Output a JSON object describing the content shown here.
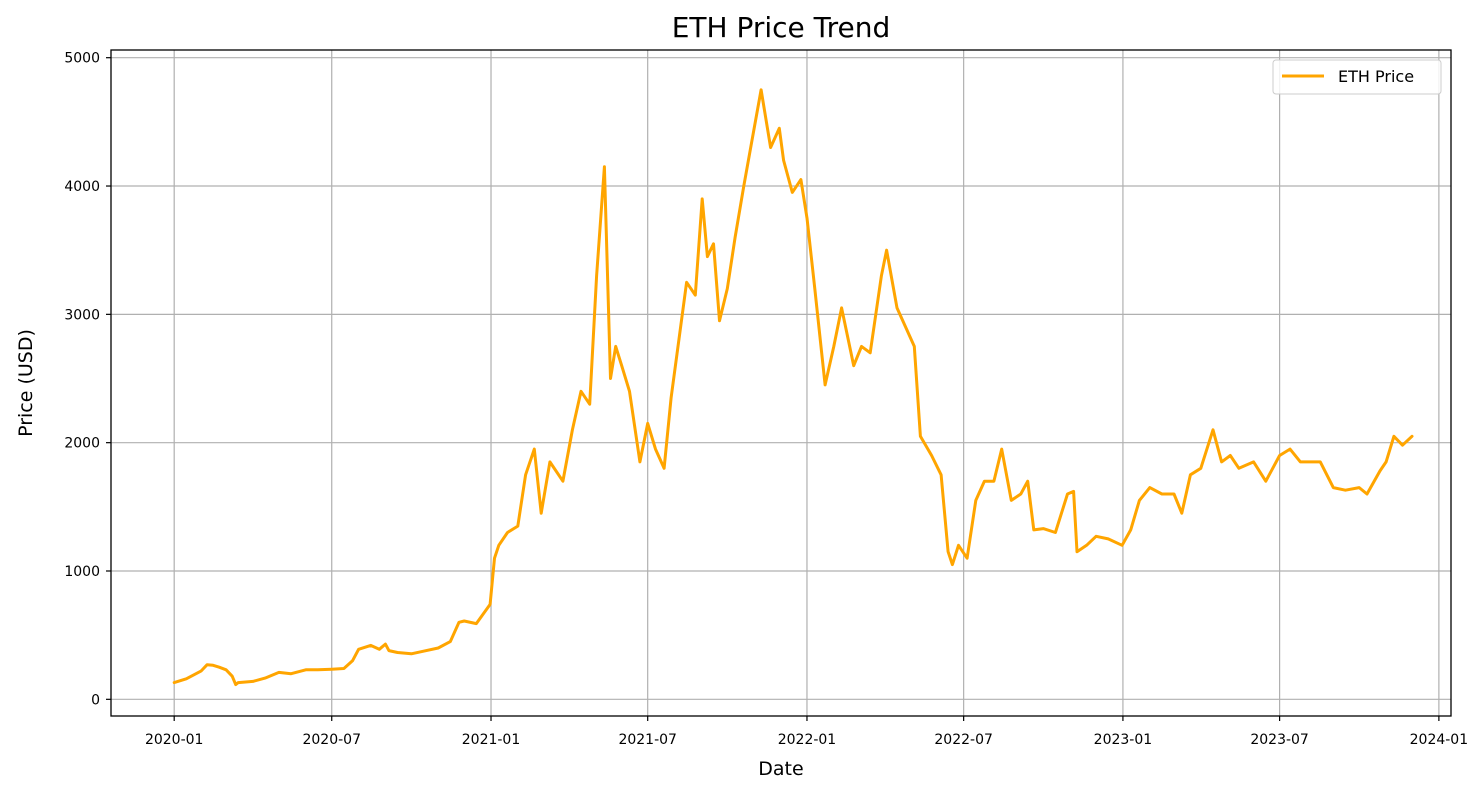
{
  "chart_data": {
    "type": "line",
    "title": "ETH Price Trend",
    "xlabel": "Date",
    "ylabel": "Price (USD)",
    "x_ticks": [
      "2020-01",
      "2020-07",
      "2021-01",
      "2021-07",
      "2022-01",
      "2022-07",
      "2023-01",
      "2023-07",
      "2024-01"
    ],
    "y_ticks": [
      0,
      1000,
      2000,
      3000,
      4000,
      5000
    ],
    "xlim": [
      "2019-10-20",
      "2024-01-15"
    ],
    "ylim": [
      -130,
      5060
    ],
    "grid": true,
    "legend_position": "upper right",
    "colors": {
      "series": "#FFA500",
      "grid": "#b0b0b0",
      "axes": "#000000"
    },
    "series": [
      {
        "name": "ETH Price",
        "x": [
          "2020-01-01",
          "2020-01-15",
          "2020-02-01",
          "2020-02-08",
          "2020-02-15",
          "2020-02-22",
          "2020-03-01",
          "2020-03-08",
          "2020-03-12",
          "2020-03-15",
          "2020-04-01",
          "2020-04-15",
          "2020-05-01",
          "2020-05-15",
          "2020-06-01",
          "2020-06-15",
          "2020-07-01",
          "2020-07-15",
          "2020-07-25",
          "2020-08-01",
          "2020-08-15",
          "2020-08-25",
          "2020-09-01",
          "2020-09-05",
          "2020-09-15",
          "2020-10-01",
          "2020-10-15",
          "2020-11-01",
          "2020-11-15",
          "2020-11-25",
          "2020-12-01",
          "2020-12-15",
          "2020-12-31",
          "2021-01-05",
          "2021-01-10",
          "2021-01-20",
          "2021-02-01",
          "2021-02-10",
          "2021-02-20",
          "2021-02-28",
          "2021-03-10",
          "2021-03-25",
          "2021-04-05",
          "2021-04-15",
          "2021-04-25",
          "2021-05-03",
          "2021-05-12",
          "2021-05-19",
          "2021-05-25",
          "2021-06-01",
          "2021-06-10",
          "2021-06-22",
          "2021-07-01",
          "2021-07-10",
          "2021-07-20",
          "2021-07-28",
          "2021-08-05",
          "2021-08-15",
          "2021-08-25",
          "2021-09-02",
          "2021-09-08",
          "2021-09-15",
          "2021-09-22",
          "2021-10-01",
          "2021-10-10",
          "2021-10-20",
          "2021-10-28",
          "2021-11-09",
          "2021-11-20",
          "2021-11-30",
          "2021-12-05",
          "2021-12-15",
          "2021-12-25",
          "2022-01-01",
          "2022-01-10",
          "2022-01-22",
          "2022-02-01",
          "2022-02-10",
          "2022-02-24",
          "2022-03-05",
          "2022-03-15",
          "2022-03-28",
          "2022-04-03",
          "2022-04-15",
          "2022-04-25",
          "2022-05-05",
          "2022-05-12",
          "2022-05-25",
          "2022-06-05",
          "2022-06-13",
          "2022-06-18",
          "2022-06-25",
          "2022-07-05",
          "2022-07-15",
          "2022-07-25",
          "2022-08-05",
          "2022-08-14",
          "2022-08-25",
          "2022-09-05",
          "2022-09-13",
          "2022-09-20",
          "2022-10-01",
          "2022-10-15",
          "2022-10-29",
          "2022-11-05",
          "2022-11-09",
          "2022-11-20",
          "2022-12-01",
          "2022-12-15",
          "2022-12-31",
          "2023-01-10",
          "2023-01-20",
          "2023-02-01",
          "2023-02-15",
          "2023-03-01",
          "2023-03-10",
          "2023-03-20",
          "2023-04-01",
          "2023-04-15",
          "2023-04-25",
          "2023-05-05",
          "2023-05-15",
          "2023-06-01",
          "2023-06-15",
          "2023-07-01",
          "2023-07-13",
          "2023-07-25",
          "2023-08-05",
          "2023-08-17",
          "2023-09-01",
          "2023-09-15",
          "2023-10-01",
          "2023-10-10",
          "2023-10-25",
          "2023-11-01",
          "2023-11-10",
          "2023-11-20",
          "2023-12-01"
        ],
        "values": [
          130,
          160,
          220,
          270,
          265,
          250,
          230,
          180,
          115,
          130,
          140,
          165,
          210,
          200,
          230,
          230,
          235,
          240,
          300,
          390,
          420,
          390,
          430,
          380,
          365,
          355,
          375,
          400,
          450,
          600,
          610,
          590,
          740,
          1100,
          1200,
          1300,
          1350,
          1750,
          1950,
          1450,
          1850,
          1700,
          2100,
          2400,
          2300,
          3300,
          4150,
          2500,
          2750,
          2600,
          2400,
          1850,
          2150,
          1950,
          1800,
          2350,
          2750,
          3250,
          3150,
          3900,
          3450,
          3550,
          2950,
          3200,
          3600,
          4000,
          4300,
          4750,
          4300,
          4450,
          4200,
          3950,
          4050,
          3750,
          3200,
          2450,
          2750,
          3050,
          2600,
          2750,
          2700,
          3300,
          3500,
          3050,
          2900,
          2750,
          2050,
          1900,
          1750,
          1150,
          1050,
          1200,
          1100,
          1550,
          1700,
          1700,
          1950,
          1550,
          1600,
          1700,
          1320,
          1330,
          1300,
          1600,
          1620,
          1150,
          1200,
          1270,
          1250,
          1200,
          1320,
          1550,
          1650,
          1600,
          1600,
          1450,
          1750,
          1800,
          2100,
          1850,
          1900,
          1800,
          1850,
          1700,
          1900,
          1950,
          1850,
          1850,
          1850,
          1650,
          1630,
          1650,
          1600,
          1780,
          1850,
          2050,
          1980,
          2050
        ]
      }
    ]
  }
}
